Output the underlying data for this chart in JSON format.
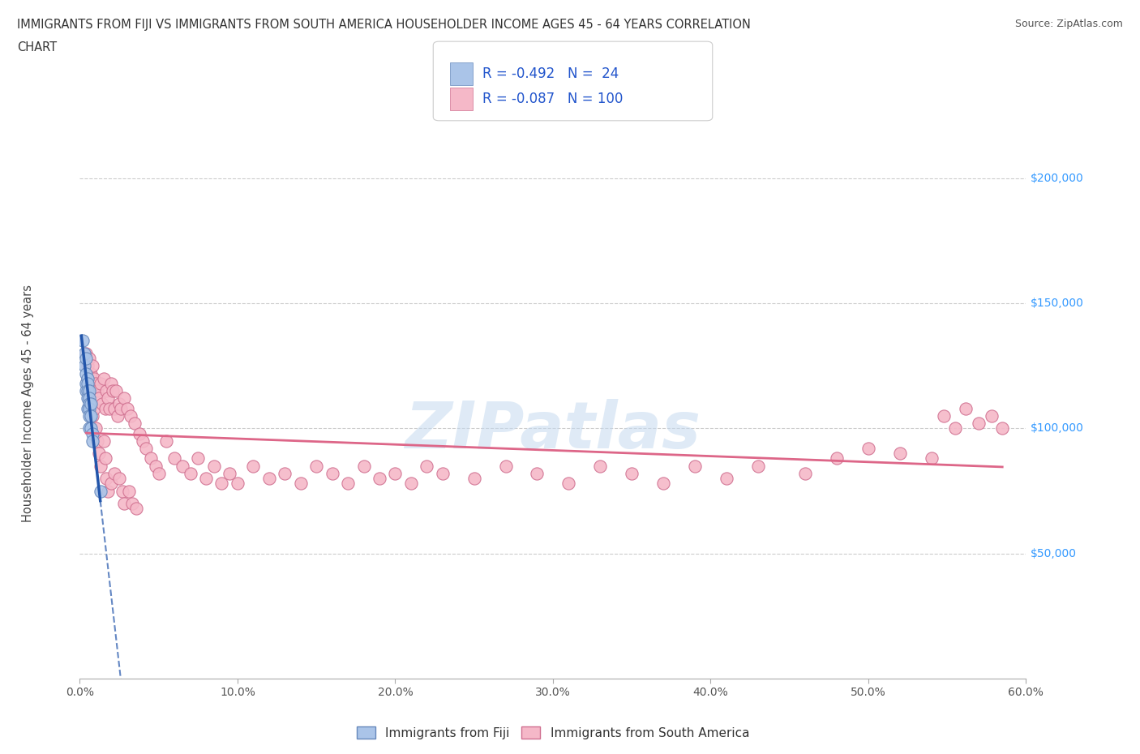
{
  "title_line1": "IMMIGRANTS FROM FIJI VS IMMIGRANTS FROM SOUTH AMERICA HOUSEHOLDER INCOME AGES 45 - 64 YEARS CORRELATION",
  "title_line2": "CHART",
  "source": "Source: ZipAtlas.com",
  "ylabel": "Householder Income Ages 45 - 64 years",
  "xlim": [
    0.0,
    0.6
  ],
  "ylim": [
    0,
    220000
  ],
  "yticks": [
    0,
    50000,
    100000,
    150000,
    200000
  ],
  "ytick_labels": [
    "",
    "$50,000",
    "$100,000",
    "$150,000",
    "$200,000"
  ],
  "xticks": [
    0.0,
    0.1,
    0.2,
    0.3,
    0.4,
    0.5,
    0.6
  ],
  "xtick_labels": [
    "0.0%",
    "10.0%",
    "20.0%",
    "30.0%",
    "40.0%",
    "50.0%",
    "60.0%"
  ],
  "fiji_color": "#aac4e8",
  "fiji_edge": "#6688bb",
  "sa_color": "#f5b8c8",
  "sa_edge": "#d07090",
  "trend_fiji_color": "#2255aa",
  "trend_sa_color": "#dd6688",
  "fiji_R": -0.492,
  "fiji_N": 24,
  "sa_R": -0.087,
  "sa_N": 100,
  "fiji_x": [
    0.002,
    0.003,
    0.003,
    0.004,
    0.004,
    0.004,
    0.004,
    0.005,
    0.005,
    0.005,
    0.005,
    0.005,
    0.006,
    0.006,
    0.006,
    0.006,
    0.006,
    0.006,
    0.007,
    0.007,
    0.007,
    0.008,
    0.008,
    0.013
  ],
  "fiji_y": [
    135000,
    130000,
    125000,
    128000,
    122000,
    118000,
    115000,
    120000,
    118000,
    115000,
    112000,
    108000,
    115000,
    112000,
    110000,
    108000,
    105000,
    100000,
    110000,
    105000,
    100000,
    98000,
    95000,
    75000
  ],
  "sa_x": [
    0.004,
    0.005,
    0.005,
    0.006,
    0.006,
    0.007,
    0.007,
    0.007,
    0.008,
    0.008,
    0.008,
    0.009,
    0.009,
    0.01,
    0.01,
    0.011,
    0.011,
    0.012,
    0.012,
    0.013,
    0.013,
    0.014,
    0.015,
    0.015,
    0.016,
    0.016,
    0.017,
    0.017,
    0.018,
    0.018,
    0.019,
    0.02,
    0.02,
    0.021,
    0.022,
    0.022,
    0.023,
    0.024,
    0.025,
    0.025,
    0.026,
    0.027,
    0.028,
    0.028,
    0.03,
    0.031,
    0.032,
    0.033,
    0.035,
    0.036,
    0.038,
    0.04,
    0.042,
    0.045,
    0.048,
    0.05,
    0.055,
    0.06,
    0.065,
    0.07,
    0.075,
    0.08,
    0.085,
    0.09,
    0.095,
    0.1,
    0.11,
    0.12,
    0.13,
    0.14,
    0.15,
    0.16,
    0.17,
    0.18,
    0.19,
    0.2,
    0.21,
    0.22,
    0.23,
    0.25,
    0.27,
    0.29,
    0.31,
    0.33,
    0.35,
    0.37,
    0.39,
    0.41,
    0.43,
    0.46,
    0.48,
    0.5,
    0.52,
    0.54,
    0.548,
    0.555,
    0.562,
    0.57,
    0.578,
    0.585
  ],
  "sa_y": [
    130000,
    125000,
    120000,
    128000,
    115000,
    122000,
    118000,
    110000,
    125000,
    115000,
    105000,
    120000,
    108000,
    118000,
    100000,
    115000,
    95000,
    112000,
    90000,
    118000,
    85000,
    110000,
    120000,
    95000,
    108000,
    88000,
    115000,
    80000,
    112000,
    75000,
    108000,
    118000,
    78000,
    115000,
    108000,
    82000,
    115000,
    105000,
    110000,
    80000,
    108000,
    75000,
    112000,
    70000,
    108000,
    75000,
    105000,
    70000,
    102000,
    68000,
    98000,
    95000,
    92000,
    88000,
    85000,
    82000,
    95000,
    88000,
    85000,
    82000,
    88000,
    80000,
    85000,
    78000,
    82000,
    78000,
    85000,
    80000,
    82000,
    78000,
    85000,
    82000,
    78000,
    85000,
    80000,
    82000,
    78000,
    85000,
    82000,
    80000,
    85000,
    82000,
    78000,
    85000,
    82000,
    78000,
    85000,
    80000,
    85000,
    82000,
    88000,
    92000,
    90000,
    88000,
    105000,
    100000,
    108000,
    102000,
    105000,
    100000
  ],
  "watermark": "ZIPatlas",
  "grid_color": "#cccccc",
  "background_color": "#ffffff",
  "legend_fiji_label": "Immigrants from Fiji",
  "legend_sa_label": "Immigrants from South America"
}
